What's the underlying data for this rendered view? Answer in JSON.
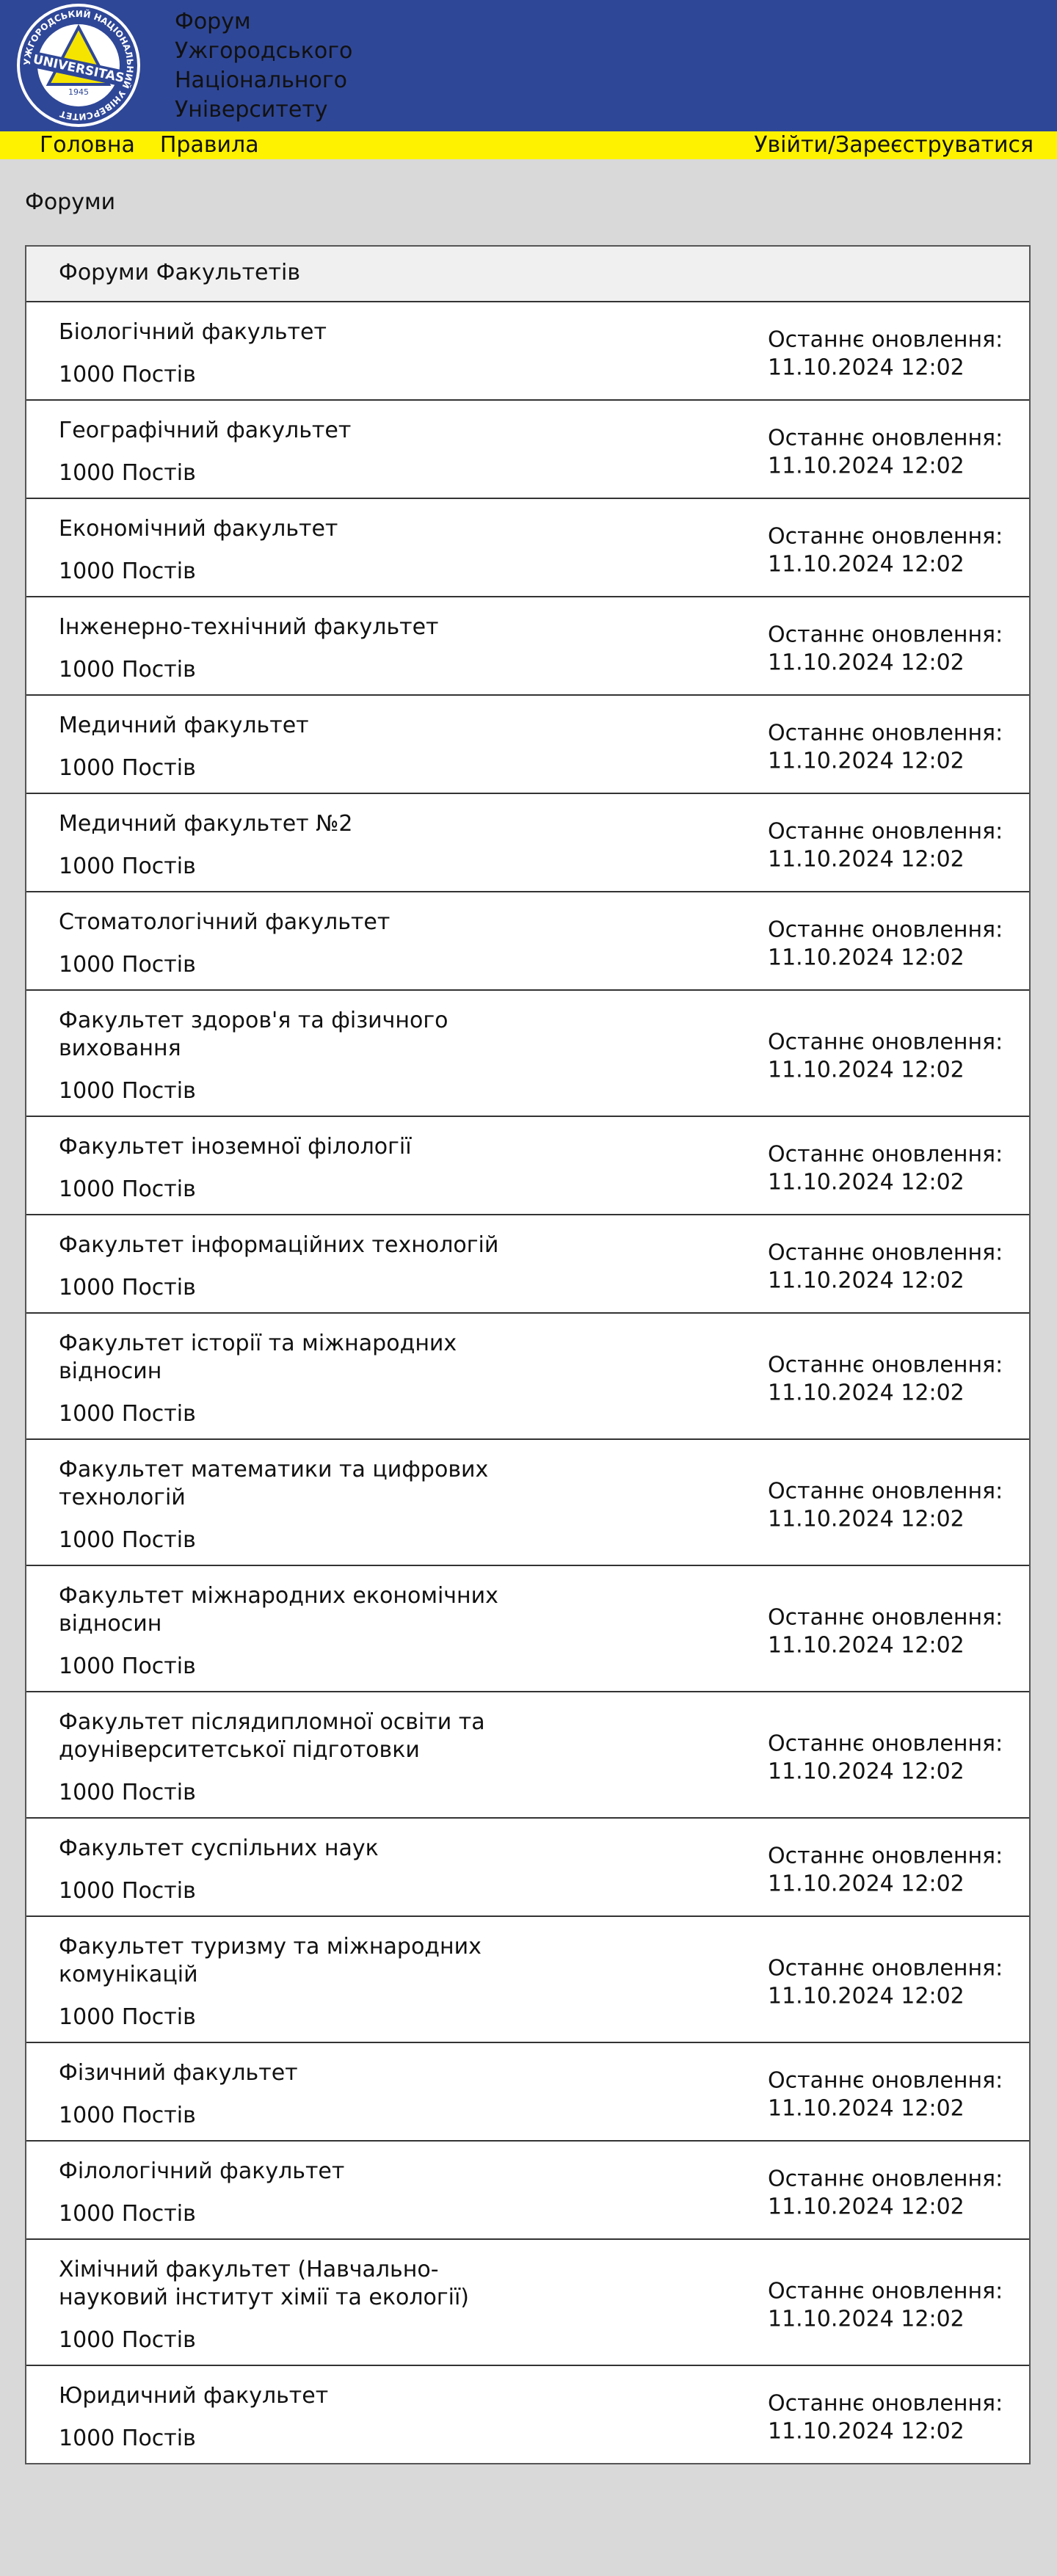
{
  "header": {
    "title": "Форум Ужгородського Національного Університету",
    "logo": {
      "ring_text": "УЖГОРОДСЬКИЙ НАЦІОНАЛЬНИЙ УНІВЕРСИТЕТ",
      "center_text": "UNIVERSITAS",
      "year": "1945"
    }
  },
  "nav": {
    "links": [
      "Головна",
      "Правила"
    ],
    "auth": "Увійти/Зареєструватися"
  },
  "section_title": "Форуми",
  "table": {
    "title": "Форуми Факультетів",
    "rows": [
      {
        "name": "Біологічний факультет",
        "posts": "1000 Постів",
        "update_label": "Останнє оновлення:",
        "update_time": "11.10.2024 12:02"
      },
      {
        "name": "Географічний факультет",
        "posts": "1000 Постів",
        "update_label": "Останнє оновлення:",
        "update_time": "11.10.2024 12:02"
      },
      {
        "name": "Економічний факультет",
        "posts": "1000 Постів",
        "update_label": "Останнє оновлення:",
        "update_time": "11.10.2024 12:02"
      },
      {
        "name": "Інженерно-технічний факультет",
        "posts": "1000 Постів",
        "update_label": "Останнє оновлення:",
        "update_time": "11.10.2024 12:02"
      },
      {
        "name": "Медичний факультет",
        "posts": "1000 Постів",
        "update_label": "Останнє оновлення:",
        "update_time": "11.10.2024 12:02"
      },
      {
        "name": "Медичний факультет №2",
        "posts": "1000 Постів",
        "update_label": "Останнє оновлення:",
        "update_time": "11.10.2024 12:02"
      },
      {
        "name": "Стоматологічний факультет",
        "posts": "1000 Постів",
        "update_label": "Останнє оновлення:",
        "update_time": "11.10.2024 12:02"
      },
      {
        "name": "Факультет здоров'я та фізичного виховання",
        "posts": "1000 Постів",
        "update_label": "Останнє оновлення:",
        "update_time": "11.10.2024 12:02"
      },
      {
        "name": "Факультет іноземної філології",
        "posts": "1000 Постів",
        "update_label": "Останнє оновлення:",
        "update_time": "11.10.2024 12:02"
      },
      {
        "name": "Факультет інформаційних технологій",
        "posts": "1000 Постів",
        "update_label": "Останнє оновлення:",
        "update_time": "11.10.2024 12:02"
      },
      {
        "name": "Факультет історії та міжнародних відносин",
        "posts": "1000 Постів",
        "update_label": "Останнє оновлення:",
        "update_time": "11.10.2024 12:02"
      },
      {
        "name": "Факультет математики та цифрових технологій",
        "posts": "1000 Постів",
        "update_label": "Останнє оновлення:",
        "update_time": "11.10.2024 12:02"
      },
      {
        "name": "Факультет міжнародних економічних відносин",
        "posts": "1000 Постів",
        "update_label": "Останнє оновлення:",
        "update_time": "11.10.2024 12:02"
      },
      {
        "name": "Факультет післядипломної освіти та доуніверситетської підготовки",
        "posts": "1000 Постів",
        "update_label": "Останнє оновлення:",
        "update_time": "11.10.2024 12:02"
      },
      {
        "name": "Факультет суспільних наук",
        "posts": "1000 Постів",
        "update_label": "Останнє оновлення:",
        "update_time": "11.10.2024 12:02"
      },
      {
        "name": "Факультет туризму та міжнародних комунікацій",
        "posts": "1000 Постів",
        "update_label": "Останнє оновлення:",
        "update_time": "11.10.2024 12:02"
      },
      {
        "name": "Фізичний факультет",
        "posts": "1000 Постів",
        "update_label": "Останнє оновлення:",
        "update_time": "11.10.2024 12:02"
      },
      {
        "name": "Філологічний факультет",
        "posts": "1000 Постів",
        "update_label": "Останнє оновлення:",
        "update_time": "11.10.2024 12:02"
      },
      {
        "name": "Хімічний факультет (Навчально-науковий інститут хімії та екології)",
        "posts": "1000 Постів",
        "update_label": "Останнє оновлення:",
        "update_time": "11.10.2024 12:02"
      },
      {
        "name": "Юридичний факультет",
        "posts": "1000 Постів",
        "update_label": "Останнє оновлення:",
        "update_time": "11.10.2024 12:02"
      }
    ]
  }
}
